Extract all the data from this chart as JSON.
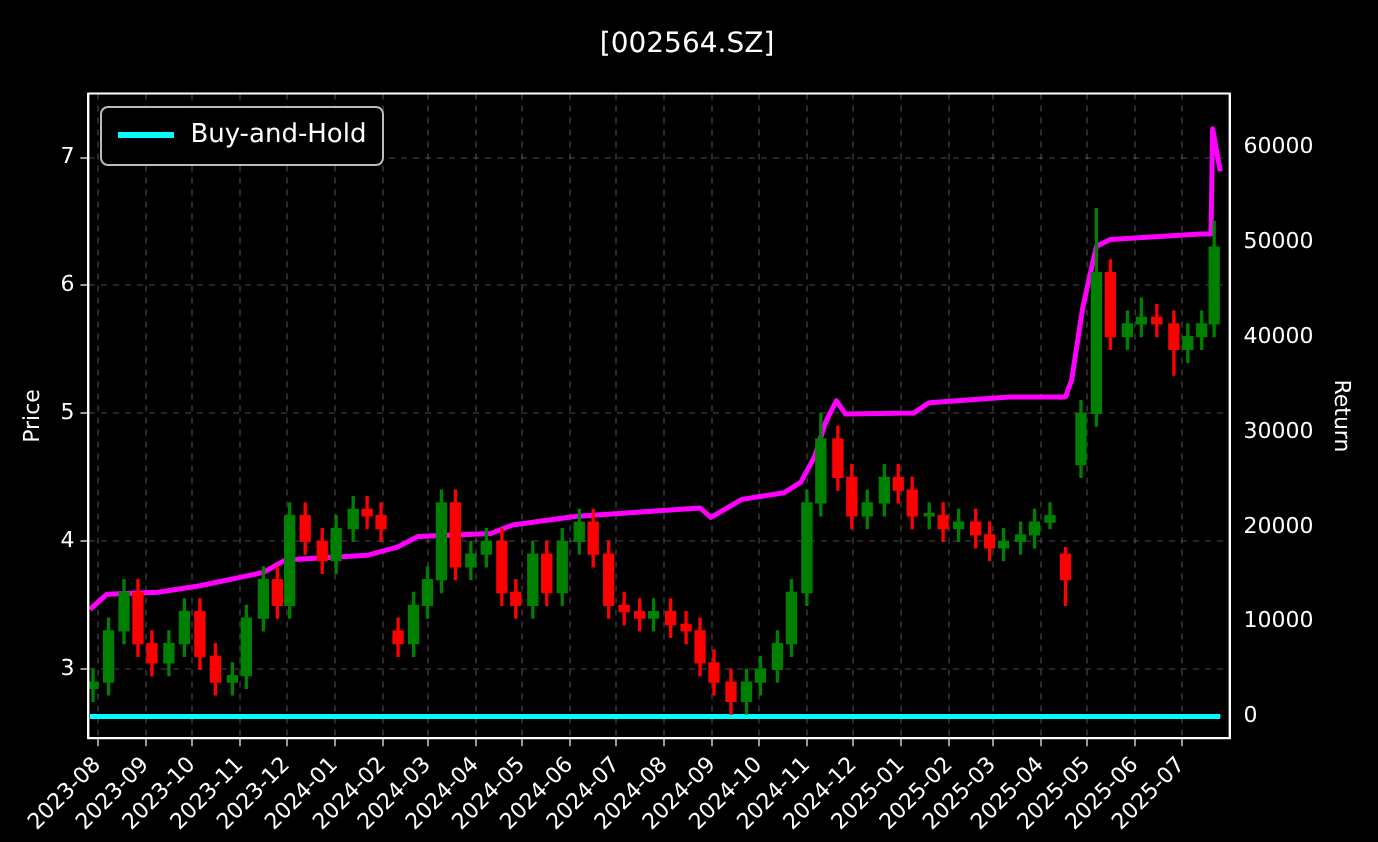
{
  "chart_data": {
    "type": "candlestick",
    "title": "[002564.SZ]",
    "ylabel": "Price",
    "y2label": "Return",
    "x": [
      "2023-07-29",
      "2023-08-08",
      "2023-08-18",
      "2023-08-27",
      "2023-09-05",
      "2023-09-16",
      "2023-09-26",
      "2023-10-06",
      "2023-10-16",
      "2023-10-27",
      "2023-11-05",
      "2023-11-16",
      "2023-11-25",
      "2023-12-03",
      "2023-12-13",
      "2023-12-24",
      "2024-01-02",
      "2024-01-13",
      "2024-01-22",
      "2024-01-31",
      "2024-02-11",
      "2024-02-21",
      "2024-03-01",
      "2024-03-10",
      "2024-03-19",
      "2024-03-29",
      "2024-04-08",
      "2024-04-18",
      "2024-04-27",
      "2024-05-08",
      "2024-05-17",
      "2024-05-27",
      "2024-06-07",
      "2024-06-16",
      "2024-06-26",
      "2024-07-06",
      "2024-07-16",
      "2024-07-25",
      "2024-08-05",
      "2024-08-15",
      "2024-08-24",
      "2024-09-02",
      "2024-09-13",
      "2024-09-23",
      "2024-10-02",
      "2024-10-13",
      "2024-10-22",
      "2024-11-01",
      "2024-11-10",
      "2024-11-21",
      "2024-11-30",
      "2024-12-10",
      "2024-12-21",
      "2024-12-30",
      "2025-01-08",
      "2025-01-19",
      "2025-01-28",
      "2025-02-07",
      "2025-02-18",
      "2025-02-27",
      "2025-03-08",
      "2025-03-19",
      "2025-03-28",
      "2025-04-07",
      "2025-04-17",
      "2025-04-27",
      "2025-05-07",
      "2025-05-16",
      "2025-05-27",
      "2025-06-05",
      "2025-06-15",
      "2025-06-26",
      "2025-07-05",
      "2025-07-14",
      "2025-07-22"
    ],
    "ohlc": [
      [
        2.85,
        3.0,
        2.75,
        2.9
      ],
      [
        2.9,
        3.4,
        2.8,
        3.3
      ],
      [
        3.3,
        3.7,
        3.2,
        3.6
      ],
      [
        3.6,
        3.7,
        3.1,
        3.2
      ],
      [
        3.2,
        3.3,
        2.95,
        3.05
      ],
      [
        3.05,
        3.3,
        2.95,
        3.2
      ],
      [
        3.2,
        3.55,
        3.1,
        3.45
      ],
      [
        3.45,
        3.55,
        3.0,
        3.1
      ],
      [
        3.1,
        3.2,
        2.8,
        2.9
      ],
      [
        2.9,
        3.05,
        2.8,
        2.95
      ],
      [
        2.95,
        3.5,
        2.85,
        3.4
      ],
      [
        3.4,
        3.8,
        3.3,
        3.7
      ],
      [
        3.7,
        3.8,
        3.4,
        3.5
      ],
      [
        3.5,
        4.3,
        3.4,
        4.2
      ],
      [
        4.2,
        4.3,
        3.9,
        4.0
      ],
      [
        4.0,
        4.1,
        3.75,
        3.85
      ],
      [
        3.85,
        4.2,
        3.75,
        4.1
      ],
      [
        4.1,
        4.35,
        4.0,
        4.25
      ],
      [
        4.25,
        4.35,
        4.1,
        4.2
      ],
      [
        4.2,
        4.3,
        4.0,
        4.1
      ],
      [
        3.3,
        3.4,
        3.1,
        3.2
      ],
      [
        3.2,
        3.6,
        3.1,
        3.5
      ],
      [
        3.5,
        3.8,
        3.4,
        3.7
      ],
      [
        3.7,
        4.4,
        3.6,
        4.3
      ],
      [
        4.3,
        4.4,
        3.7,
        3.8
      ],
      [
        3.8,
        4.0,
        3.7,
        3.9
      ],
      [
        3.9,
        4.1,
        3.8,
        4.0
      ],
      [
        4.0,
        4.1,
        3.5,
        3.6
      ],
      [
        3.6,
        3.7,
        3.4,
        3.5
      ],
      [
        3.5,
        4.0,
        3.4,
        3.9
      ],
      [
        3.9,
        4.0,
        3.5,
        3.6
      ],
      [
        3.6,
        4.1,
        3.5,
        4.0
      ],
      [
        4.0,
        4.25,
        3.9,
        4.15
      ],
      [
        4.15,
        4.25,
        3.8,
        3.9
      ],
      [
        3.9,
        4.0,
        3.4,
        3.5
      ],
      [
        3.5,
        3.6,
        3.35,
        3.45
      ],
      [
        3.45,
        3.55,
        3.3,
        3.4
      ],
      [
        3.4,
        3.55,
        3.3,
        3.45
      ],
      [
        3.45,
        3.55,
        3.25,
        3.35
      ],
      [
        3.35,
        3.45,
        3.2,
        3.3
      ],
      [
        3.3,
        3.4,
        2.95,
        3.05
      ],
      [
        3.05,
        3.15,
        2.8,
        2.9
      ],
      [
        2.9,
        3.0,
        2.65,
        2.75
      ],
      [
        2.75,
        3.0,
        2.65,
        2.9
      ],
      [
        2.9,
        3.1,
        2.8,
        3.0
      ],
      [
        3.0,
        3.3,
        2.9,
        3.2
      ],
      [
        3.2,
        3.7,
        3.1,
        3.6
      ],
      [
        3.6,
        4.4,
        3.5,
        4.3
      ],
      [
        4.3,
        5.0,
        4.2,
        4.8
      ],
      [
        4.8,
        4.9,
        4.4,
        4.5
      ],
      [
        4.5,
        4.6,
        4.1,
        4.2
      ],
      [
        4.2,
        4.4,
        4.1,
        4.3
      ],
      [
        4.3,
        4.6,
        4.2,
        4.5
      ],
      [
        4.5,
        4.6,
        4.3,
        4.4
      ],
      [
        4.4,
        4.5,
        4.1,
        4.2
      ],
      [
        4.2,
        4.3,
        4.1,
        4.2
      ],
      [
        4.2,
        4.3,
        4.0,
        4.1
      ],
      [
        4.1,
        4.25,
        4.0,
        4.15
      ],
      [
        4.15,
        4.25,
        3.95,
        4.05
      ],
      [
        4.05,
        4.15,
        3.85,
        3.95
      ],
      [
        3.95,
        4.1,
        3.85,
        4.0
      ],
      [
        4.0,
        4.15,
        3.9,
        4.05
      ],
      [
        4.05,
        4.25,
        3.95,
        4.15
      ],
      [
        4.15,
        4.3,
        4.1,
        4.2
      ],
      [
        3.9,
        3.95,
        3.5,
        3.7
      ],
      [
        4.6,
        5.1,
        4.5,
        5.0
      ],
      [
        5.0,
        6.6,
        4.9,
        6.1
      ],
      [
        6.1,
        6.2,
        5.5,
        5.6
      ],
      [
        5.6,
        5.8,
        5.5,
        5.7
      ],
      [
        5.7,
        5.9,
        5.6,
        5.75
      ],
      [
        5.75,
        5.85,
        5.6,
        5.7
      ],
      [
        5.7,
        5.8,
        5.3,
        5.5
      ],
      [
        5.5,
        5.7,
        5.4,
        5.6
      ],
      [
        5.6,
        5.8,
        5.5,
        5.7
      ],
      [
        5.7,
        6.5,
        5.6,
        6.3
      ]
    ],
    "colors": [
      "#008000",
      "#008000",
      "#008000",
      "#ff0000",
      "#ff0000",
      "#008000",
      "#008000",
      "#ff0000",
      "#ff0000",
      "#008000",
      "#008000",
      "#008000",
      "#ff0000",
      "#008000",
      "#ff0000",
      "#ff0000",
      "#008000",
      "#008000",
      "#ff0000",
      "#ff0000",
      "#ff0000",
      "#008000",
      "#008000",
      "#008000",
      "#ff0000",
      "#008000",
      "#008000",
      "#ff0000",
      "#ff0000",
      "#008000",
      "#ff0000",
      "#008000",
      "#008000",
      "#ff0000",
      "#ff0000",
      "#ff0000",
      "#ff0000",
      "#008000",
      "#ff0000",
      "#ff0000",
      "#ff0000",
      "#ff0000",
      "#ff0000",
      "#008000",
      "#008000",
      "#008000",
      "#008000",
      "#008000",
      "#008000",
      "#ff0000",
      "#ff0000",
      "#008000",
      "#008000",
      "#ff0000",
      "#ff0000",
      "#008000",
      "#ff0000",
      "#008000",
      "#ff0000",
      "#ff0000",
      "#008000",
      "#008000",
      "#008000",
      "#008000",
      "#ff0000",
      "#008000",
      "#008000",
      "#ff0000",
      "#008000",
      "#008000",
      "#ff0000",
      "#ff0000",
      "#008000",
      "#008000",
      "#008000"
    ],
    "series": [
      {
        "type": "line",
        "axis": "y2",
        "color": "#ff00ff",
        "x": [
          "2023-07-27",
          "2023-08-07",
          "2023-09-09",
          "2023-10-06",
          "2023-11-16",
          "2023-11-30",
          "2024-01-22",
          "2024-02-11",
          "2024-02-24",
          "2024-04-11",
          "2024-04-25",
          "2024-06-04",
          "2024-08-24",
          "2024-08-31",
          "2024-09-20",
          "2024-10-17",
          "2024-10-28",
          "2024-11-06",
          "2024-11-13",
          "2024-11-20",
          "2024-11-26",
          "2025-01-09",
          "2025-01-19",
          "2025-03-12",
          "2025-04-17",
          "2025-04-21",
          "2025-04-28",
          "2025-05-07",
          "2025-05-16",
          "2025-07-13",
          "2025-07-20",
          "2025-07-21",
          "2025-07-26"
        ],
        "values": [
          11300,
          12900,
          13100,
          13800,
          15200,
          16500,
          17000,
          17900,
          19000,
          19300,
          20200,
          21100,
          22000,
          21000,
          22900,
          23600,
          24700,
          27400,
          31000,
          33300,
          31900,
          32000,
          33100,
          33700,
          33700,
          35500,
          43000,
          49600,
          50300,
          50900,
          50900,
          62000,
          57500
        ]
      },
      {
        "type": "line",
        "axis": "y2",
        "name": "Buy-and-Hold",
        "color": "#00ffff",
        "x": [
          "2023-07-27",
          "2025-07-26"
        ],
        "values": [
          0,
          0
        ]
      }
    ],
    "xlim": [
      "2023-07-26",
      "2025-08-01"
    ],
    "xticks": [
      {
        "value": "2023-08-01",
        "label": "2023-08"
      },
      {
        "value": "2023-09-01",
        "label": "2023-09"
      },
      {
        "value": "2023-10-01",
        "label": "2023-10"
      },
      {
        "value": "2023-11-01",
        "label": "2023-11"
      },
      {
        "value": "2023-12-01",
        "label": "2023-12"
      },
      {
        "value": "2024-01-01",
        "label": "2024-01"
      },
      {
        "value": "2024-02-01",
        "label": "2024-02"
      },
      {
        "value": "2024-03-01",
        "label": "2024-03"
      },
      {
        "value": "2024-04-01",
        "label": "2024-04"
      },
      {
        "value": "2024-05-01",
        "label": "2024-05"
      },
      {
        "value": "2024-06-01",
        "label": "2024-06"
      },
      {
        "value": "2024-07-01",
        "label": "2024-07"
      },
      {
        "value": "2024-08-01",
        "label": "2024-08"
      },
      {
        "value": "2024-09-01",
        "label": "2024-09"
      },
      {
        "value": "2024-10-01",
        "label": "2024-10"
      },
      {
        "value": "2024-11-01",
        "label": "2024-11"
      },
      {
        "value": "2024-12-01",
        "label": "2024-12"
      },
      {
        "value": "2025-01-01",
        "label": "2025-01"
      },
      {
        "value": "2025-02-01",
        "label": "2025-02"
      },
      {
        "value": "2025-03-01",
        "label": "2025-03"
      },
      {
        "value": "2025-04-01",
        "label": "2025-04"
      },
      {
        "value": "2025-05-01",
        "label": "2025-05"
      },
      {
        "value": "2025-06-01",
        "label": "2025-06"
      },
      {
        "value": "2025-07-01",
        "label": "2025-07"
      }
    ],
    "ylim": [
      2.46,
      7.5
    ],
    "yticks": [
      3,
      4,
      5,
      6,
      7
    ],
    "y2lim": [
      -2300,
      65700
    ],
    "y2ticks": [
      0,
      10000,
      20000,
      30000,
      40000,
      50000,
      60000
    ],
    "grid": true,
    "legend": "top left"
  }
}
